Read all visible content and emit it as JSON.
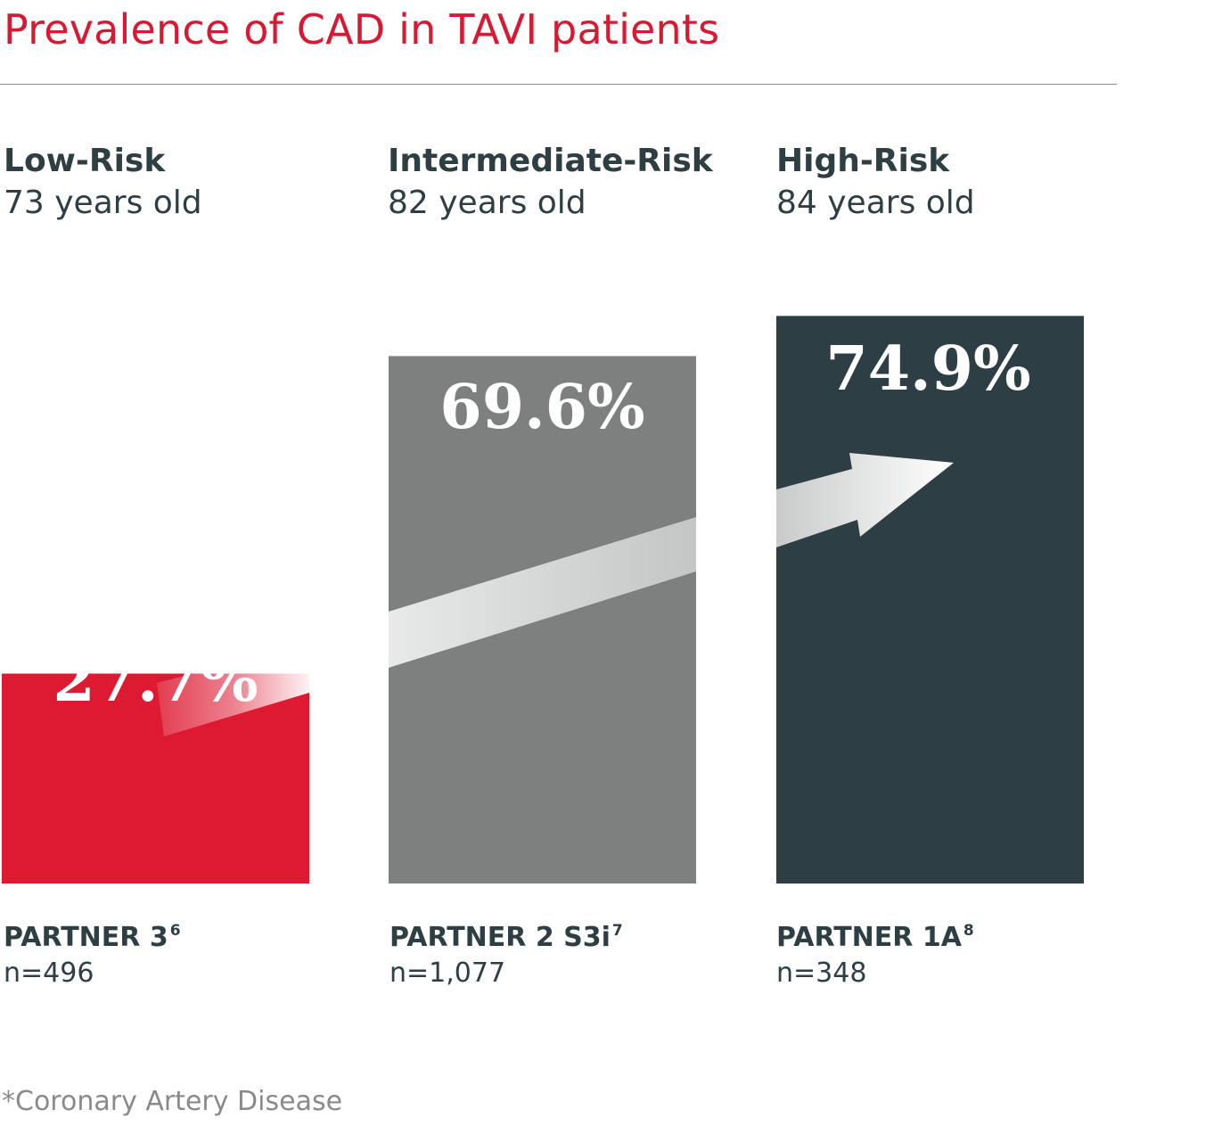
{
  "title": "Prevalence of CAD in TAVI patients",
  "footnote": "*Coronary Artery Disease",
  "colors": {
    "title": "#d71a33",
    "low": "#de1a33",
    "intermediate": "#7e807f",
    "high": "#2d3f45",
    "text": "#2e3f44",
    "rule": "#8a8a8a"
  },
  "groups": [
    {
      "risk": "Low-Risk",
      "age": "73 years old",
      "trial": "PARTNER 3",
      "ref": "6",
      "n": "n=496",
      "value_label": "27.7%"
    },
    {
      "risk": "Intermediate-Risk",
      "age": "82 years old",
      "trial": "PARTNER 2 S3i",
      "ref": "7",
      "n": "n=1,077",
      "value_label": "69.6%"
    },
    {
      "risk": "High-Risk",
      "age": "84 years old",
      "trial": "PARTNER 1A",
      "ref": "8",
      "n": "n=348",
      "value_label": "74.9%"
    }
  ],
  "chart_data": {
    "type": "bar",
    "categories": [
      "Low-Risk",
      "Intermediate-Risk",
      "High-Risk"
    ],
    "values": [
      27.7,
      69.6,
      74.9
    ],
    "ylim": [
      0,
      100
    ]
  }
}
